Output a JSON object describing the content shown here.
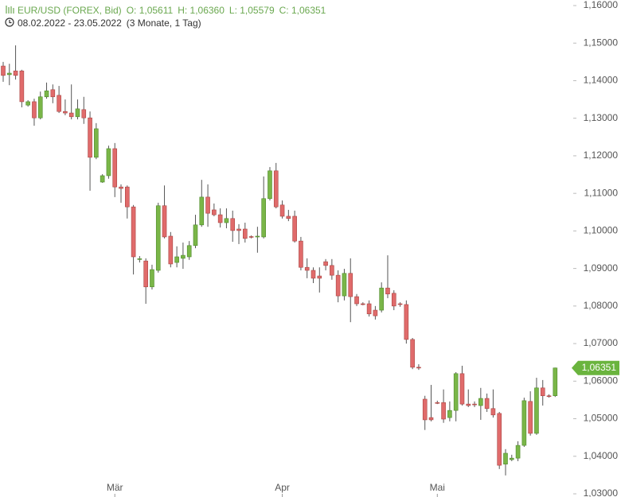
{
  "chart_data": {
    "type": "candlestick",
    "title": "EUR/USD (FOREX, Bid)",
    "ohlc_summary": [
      "O: 1,05611",
      "H: 1,06360",
      "L: 1,05579",
      "C: 1,06351"
    ],
    "subtitle": "08.02.2022 - 23.05.2022",
    "period": "(3 Monate, 1 Tag)",
    "up_color": "#7ab648",
    "down_color": "#e06b6b",
    "ylim": [
      1.03,
      1.16
    ],
    "yticks": [
      {
        "value": 1.16,
        "label": "1,16000"
      },
      {
        "value": 1.15,
        "label": "1,15000"
      },
      {
        "value": 1.14,
        "label": "1,14000"
      },
      {
        "value": 1.13,
        "label": "1,13000"
      },
      {
        "value": 1.12,
        "label": "1,12000"
      },
      {
        "value": 1.11,
        "label": "1,11000"
      },
      {
        "value": 1.1,
        "label": "1,10000"
      },
      {
        "value": 1.09,
        "label": "1,09000"
      },
      {
        "value": 1.08,
        "label": "1,08000"
      },
      {
        "value": 1.07,
        "label": "1,07000"
      },
      {
        "value": 1.06,
        "label": "1,06000"
      },
      {
        "value": 1.05,
        "label": "1,05000"
      },
      {
        "value": 1.04,
        "label": "1,04000"
      },
      {
        "value": 1.03,
        "label": "1,03000"
      }
    ],
    "xticks": [
      {
        "value": 18,
        "label": "Mär"
      },
      {
        "value": 45,
        "label": "Apr"
      },
      {
        "value": 70,
        "label": "Mai"
      }
    ],
    "last_price": {
      "value": 1.06351,
      "label": "1,06351"
    },
    "open": [
      1.1439,
      1.1416,
      1.1426,
      1.1426,
      1.1335,
      1.1344,
      1.1301,
      1.1357,
      1.1376,
      1.1361,
      1.1318,
      1.1314,
      1.1304,
      1.1323,
      1.1301,
      1.1196,
      1.113,
      1.1147,
      1.1219,
      1.1117,
      1.1117,
      1.1064,
      1.0925,
      1.092,
      1.0851,
      1.0895,
      1.1067,
      1.0986,
      1.0916,
      1.0927,
      1.0931,
      1.0961,
      1.1016,
      1.109,
      1.1056,
      1.1043,
      1.1022,
      1.1033,
      1.1005,
      1.1005,
      1.0985,
      1.0984,
      1.0984,
      1.1086,
      1.116,
      1.1069,
      1.1039,
      1.1039,
      1.0973,
      1.0903,
      1.0895,
      1.088,
      1.0918,
      1.0908,
      1.0882,
      1.0827,
      1.0887,
      1.0825,
      1.0806,
      1.0806,
      1.0789,
      1.0789,
      1.0848,
      1.0834,
      1.0806,
      1.0804,
      1.0711,
      1.0637,
      1.0552,
      1.0503,
      1.0543,
      1.0543,
      1.0503,
      1.0522,
      1.062,
      1.0539,
      1.0539,
      1.0535,
      1.0554,
      1.0527,
      1.0514,
      1.0379,
      1.0391,
      1.0395,
      1.0429,
      1.0546,
      1.0461,
      1.0582,
      1.0561,
      1.05611
    ],
    "high": [
      1.145,
      1.1445,
      1.1494,
      1.1429,
      1.1348,
      1.1352,
      1.1371,
      1.1395,
      1.139,
      1.1386,
      1.135,
      1.139,
      1.135,
      1.1357,
      1.1318,
      1.1287,
      1.1151,
      1.1227,
      1.1234,
      1.1124,
      1.1121,
      1.1069,
      1.0933,
      1.0927,
      1.091,
      1.1075,
      1.1121,
      1.0997,
      1.0959,
      1.0969,
      1.0973,
      1.1043,
      1.1136,
      1.1124,
      1.1073,
      1.106,
      1.106,
      1.1054,
      1.1018,
      1.1022,
      1.0988,
      1.1011,
      1.1145,
      1.117,
      1.1181,
      1.1081,
      1.1056,
      1.1054,
      1.0984,
      1.0927,
      1.0903,
      1.0903,
      1.0925,
      1.0925,
      1.0895,
      1.0899,
      1.0927,
      1.0832,
      1.081,
      1.0815,
      1.08,
      1.0863,
      1.0935,
      1.0842,
      1.081,
      1.0815,
      1.0715,
      1.0645,
      1.0561,
      1.059,
      1.0548,
      1.0578,
      1.0546,
      1.0624,
      1.0641,
      1.0578,
      1.0546,
      1.0582,
      1.0567,
      1.0578,
      1.0518,
      1.0419,
      1.0404,
      1.044,
      1.0556,
      1.0573,
      1.0609,
      1.0603,
      1.0565,
      1.0636
    ],
    "low": [
      1.1397,
      1.1388,
      1.1403,
      1.1329,
      1.1331,
      1.128,
      1.1297,
      1.1352,
      1.134,
      1.1314,
      1.1308,
      1.1297,
      1.1297,
      1.1285,
      1.1107,
      1.1191,
      1.1128,
      1.1139,
      1.109,
      1.1075,
      1.1033,
      1.0884,
      1.0916,
      1.0806,
      1.0844,
      1.0889,
      1.098,
      1.0903,
      1.0903,
      1.0899,
      1.0923,
      1.0954,
      1.1011,
      1.1011,
      1.1039,
      1.1009,
      1.1007,
      1.0971,
      1.0965,
      1.0969,
      1.098,
      1.0942,
      1.098,
      1.1081,
      1.106,
      1.1033,
      1.1026,
      1.0969,
      1.0895,
      1.0874,
      1.0861,
      1.0836,
      1.0895,
      1.087,
      1.081,
      1.0815,
      1.0757,
      1.08,
      1.0802,
      1.0772,
      1.0764,
      1.0783,
      1.0821,
      1.0789,
      1.0798,
      1.07,
      1.0632,
      1.063,
      1.047,
      1.0493,
      1.0539,
      1.0489,
      1.0493,
      1.0493,
      1.0535,
      1.0531,
      1.0531,
      1.0497,
      1.0518,
      1.0503,
      1.0366,
      1.0349,
      1.0387,
      1.0387,
      1.0425,
      1.0455,
      1.0457,
      1.0535,
      1.0556,
      1.05579
    ],
    "close": [
      1.1414,
      1.142,
      1.1414,
      1.1344,
      1.1344,
      1.1301,
      1.1357,
      1.1373,
      1.1357,
      1.1318,
      1.1314,
      1.1304,
      1.1325,
      1.1301,
      1.1196,
      1.1272,
      1.1147,
      1.1219,
      1.1117,
      1.1113,
      1.1064,
      1.0931,
      1.0926,
      1.0851,
      1.0897,
      1.1067,
      1.0984,
      1.0912,
      1.0931,
      1.0935,
      1.0961,
      1.1016,
      1.109,
      1.1047,
      1.1043,
      1.1022,
      1.1033,
      1.1001,
      1.1001,
      1.098,
      1.0984,
      1.0986,
      1.1086,
      1.116,
      1.1064,
      1.1039,
      1.1033,
      1.0973,
      1.0903,
      1.0895,
      1.0874,
      1.0874,
      1.0908,
      1.0882,
      1.0827,
      1.0887,
      1.0825,
      1.0806,
      1.0805,
      1.0779,
      1.0774,
      1.0848,
      1.0832,
      1.08,
      1.0805,
      1.0711,
      1.0637,
      1.0636,
      1.0497,
      1.0497,
      1.0542,
      1.0499,
      1.0522,
      1.062,
      1.0539,
      1.0535,
      1.0537,
      1.0554,
      1.0527,
      1.051,
      1.0376,
      1.0408,
      1.0395,
      1.0429,
      1.0548,
      1.0461,
      1.0582,
      1.0561,
      1.056,
      1.06351
    ]
  }
}
